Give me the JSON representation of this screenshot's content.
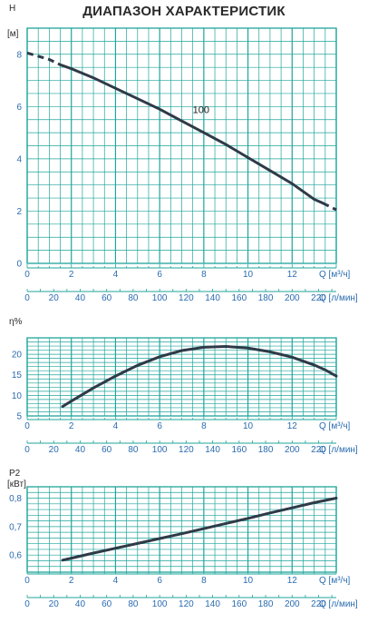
{
  "title": "ДИАПАЗОН ХАРАКТЕРИСТИК",
  "colors": {
    "grid": "#1fa59a",
    "tick_text": "#2b6cb0",
    "curve": "#2f3a48"
  },
  "chart_data": [
    {
      "type": "line",
      "ylabel": "H",
      "yunit": "[м]",
      "xlabel_q": "Q [м³/ч]",
      "xlabel_l": "Q [л/мин]",
      "xlim": [
        0,
        14
      ],
      "ylim": [
        0,
        9
      ],
      "yticks": [
        0,
        2,
        4,
        6,
        8
      ],
      "ytick_labels": [
        "0",
        "2",
        "4",
        "6",
        "8"
      ],
      "xticks": [
        0,
        2,
        4,
        6,
        8,
        10,
        12
      ],
      "xticks_l": [
        0,
        20,
        40,
        60,
        80,
        100,
        120,
        140,
        160,
        180,
        200,
        220
      ],
      "series": [
        {
          "name": "100",
          "x": [
            0,
            1,
            1.5,
            2,
            3,
            4,
            5,
            6,
            7,
            8,
            9,
            10,
            11,
            12,
            13,
            13.4,
            14
          ],
          "y": [
            8.05,
            7.8,
            7.6,
            7.45,
            7.1,
            6.7,
            6.3,
            5.9,
            5.45,
            5.0,
            4.55,
            4.05,
            3.55,
            3.05,
            2.45,
            2.3,
            2.05
          ],
          "dashed_until": 1.5,
          "dashed_from": 13.4
        }
      ],
      "label_text": "100",
      "label_x": 7.5,
      "label_y": 5.75
    },
    {
      "type": "line",
      "ylabel": "η%",
      "yunit": "",
      "xlabel_q": "Q [м³/ч]",
      "xlabel_l": "Q [л/мин]",
      "xlim": [
        0,
        14
      ],
      "ylim": [
        5,
        24
      ],
      "yticks": [
        5,
        10,
        15,
        20
      ],
      "ytick_labels": [
        "5",
        "10",
        "15",
        "20"
      ],
      "xticks": [
        0,
        2,
        4,
        6,
        8,
        10,
        12
      ],
      "xticks_l": [
        0,
        20,
        40,
        60,
        80,
        100,
        120,
        140,
        160,
        180,
        200,
        220
      ],
      "series": [
        {
          "name": "",
          "x": [
            1.6,
            2,
            3,
            4,
            5,
            6,
            7,
            8,
            9,
            10,
            11,
            12,
            13,
            13.5,
            14
          ],
          "y": [
            7.3,
            8.6,
            11.8,
            14.7,
            17.3,
            19.4,
            20.9,
            21.7,
            21.9,
            21.5,
            20.6,
            19.3,
            17.4,
            16.2,
            14.7
          ]
        }
      ]
    },
    {
      "type": "line",
      "ylabel": "P2",
      "yunit": "[кВт]",
      "xlabel_q": "Q [м³/ч]",
      "xlabel_l": "Q [л/мин]",
      "xlim": [
        0,
        14
      ],
      "ylim": [
        0.54,
        0.84
      ],
      "yticks": [
        0.6,
        0.7,
        0.8
      ],
      "ytick_labels": [
        "0,6",
        "0,7",
        "0,8"
      ],
      "xticks": [
        0,
        2,
        4,
        6,
        8,
        10,
        12
      ],
      "xticks_l": [
        0,
        20,
        40,
        60,
        80,
        100,
        120,
        140,
        160,
        180,
        200,
        220
      ],
      "series": [
        {
          "name": "",
          "x": [
            1.6,
            2,
            3,
            4,
            5,
            6,
            7,
            8,
            9,
            10,
            11,
            12,
            13,
            14
          ],
          "y": [
            0.582,
            0.589,
            0.607,
            0.624,
            0.641,
            0.658,
            0.675,
            0.693,
            0.711,
            0.729,
            0.748,
            0.766,
            0.784,
            0.8
          ]
        }
      ]
    }
  ]
}
